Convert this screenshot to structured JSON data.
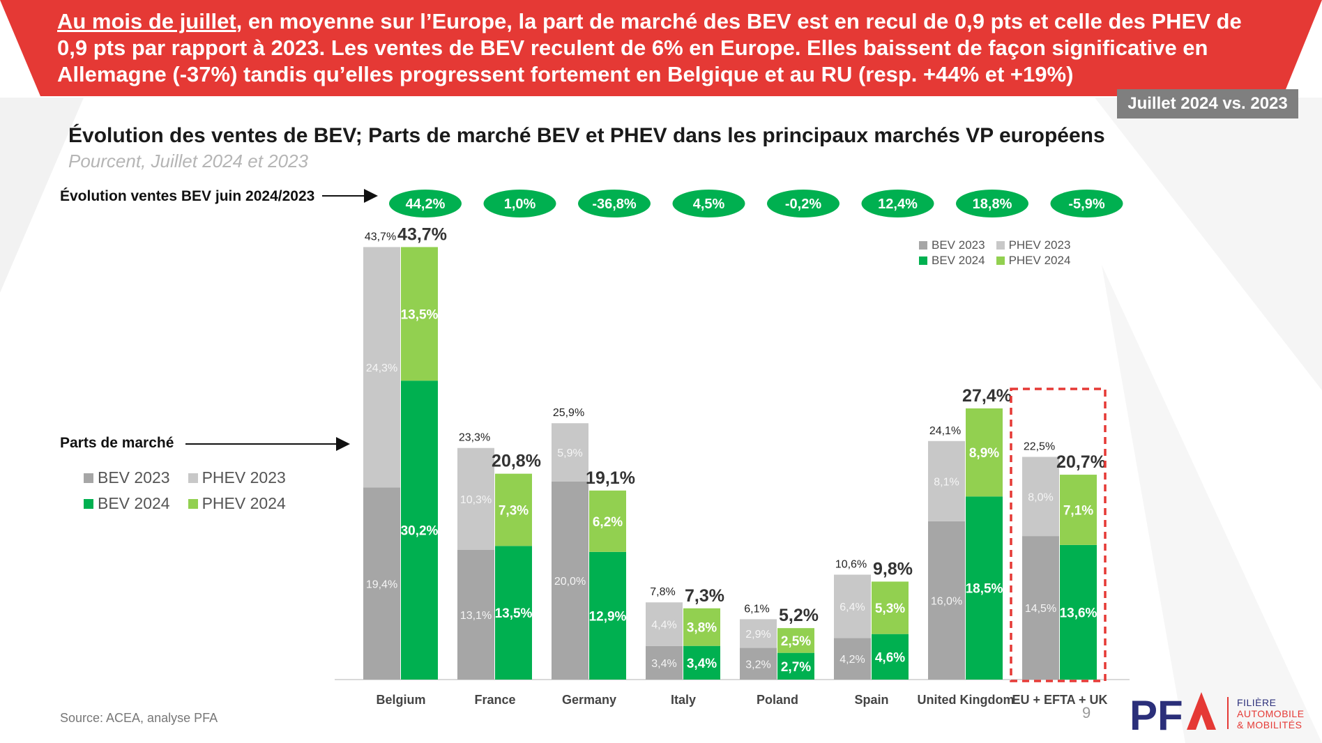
{
  "banner": {
    "highlight": "Au mois de juillet",
    "text_rest": ", en moyenne sur l’Europe, la part de marché des BEV est en recul de 0,9 pts et celle des PHEV de 0,9 pts par rapport à 2023. Les ventes de BEV reculent de 6% en Europe. Elles baissent de façon significative en Allemagne (-37%) tandis qu’elles progressent fortement en Belgique et au RU (resp. +44% et +19%)",
    "period_badge": "Juillet 2024 vs. 2023"
  },
  "colors": {
    "banner_red": "#e53935",
    "bev2023": "#a6a6a6",
    "phev2023": "#c8c8c8",
    "bev2024": "#00b050",
    "phev2024": "#92d050",
    "evol_pill": "#00b050",
    "highlight_box": "#e53935"
  },
  "chart_data": {
    "type": "bar",
    "title": "Évolution des ventes de BEV; Parts de marché BEV et PHEV dans les principaux marchés VP européens",
    "subtitle": "Pourcent, Juillet 2024 et 2023",
    "evol_label": "Évolution ventes BEV juin 2024/2023",
    "parts_label": "Parts de marché",
    "categories": [
      "Belgium",
      "France",
      "Germany",
      "Italy",
      "Poland",
      "Spain",
      "United Kingdom",
      "EU + EFTA + UK"
    ],
    "evolution_bev": [
      "44,2%",
      "1,0%",
      "-36,8%",
      "4,5%",
      "-0,2%",
      "12,4%",
      "18,8%",
      "-5,9%"
    ],
    "series": [
      {
        "name": "BEV 2023",
        "values": [
          19.4,
          13.1,
          20.0,
          3.4,
          3.2,
          4.2,
          16.0,
          14.5
        ],
        "labels": [
          "19,4%",
          "13,1%",
          "20,0%",
          "3,4%",
          "3,2%",
          "4,2%",
          "16,0%",
          "14,5%"
        ]
      },
      {
        "name": "PHEV 2023",
        "values": [
          24.3,
          10.3,
          5.9,
          4.4,
          2.9,
          6.4,
          8.1,
          8.0
        ],
        "labels": [
          "24,3%",
          "10,3%",
          "5,9%",
          "4,4%",
          "2,9%",
          "6,4%",
          "8,1%",
          "8,0%"
        ]
      },
      {
        "name": "BEV 2024",
        "values": [
          30.2,
          13.5,
          12.9,
          3.4,
          2.7,
          4.6,
          18.5,
          13.6
        ],
        "labels": [
          "30,2%",
          "13,5%",
          "12,9%",
          "3,4%",
          "2,7%",
          "4,6%",
          "18,5%",
          "13,6%"
        ]
      },
      {
        "name": "PHEV 2024",
        "values": [
          13.5,
          7.3,
          6.2,
          3.8,
          2.5,
          5.3,
          8.9,
          7.1
        ],
        "labels": [
          "13,5%",
          "7,3%",
          "6,2%",
          "3,8%",
          "2,5%",
          "5,3%",
          "8,9%",
          "7,1%"
        ]
      }
    ],
    "totals_2023": [
      "43,7%",
      "23,3%",
      "25,9%",
      "7,8%",
      "6,1%",
      "10,6%",
      "24,1%",
      "22,5%"
    ],
    "totals_2024": [
      "43,7%",
      "20,8%",
      "19,1%",
      "7,3%",
      "5,2%",
      "9,8%",
      "27,4%",
      "20,7%"
    ],
    "ylim": [
      0,
      45
    ],
    "highlighted_category": "EU + EFTA + UK"
  },
  "legend": [
    "BEV 2023",
    "PHEV 2023",
    "BEV 2024",
    "PHEV 2024"
  ],
  "footer": {
    "source": "Source: ACEA, analyse PFA",
    "page_number": "9",
    "logo": "PFA",
    "logo_line1": "FILIÈRE",
    "logo_line2": "AUTOMOBILE",
    "logo_line3": "& MOBILITÉS"
  }
}
